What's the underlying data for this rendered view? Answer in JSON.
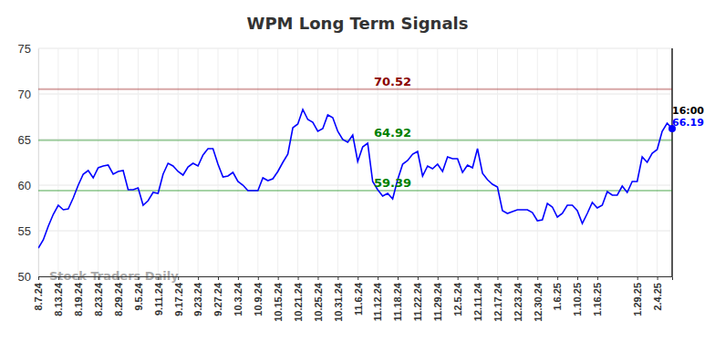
{
  "chart_data": {
    "type": "line",
    "title": "WPM Long Term Signals",
    "categories": [
      "8.7.24",
      null,
      null,
      null,
      "8.13.24",
      null,
      null,
      null,
      "8.19.24",
      null,
      null,
      null,
      "8.23.24",
      null,
      null,
      null,
      "8.29.24",
      null,
      null,
      null,
      "9.5.24",
      null,
      null,
      null,
      "9.11.24",
      null,
      null,
      null,
      "9.17.24",
      null,
      null,
      null,
      "9.23.24",
      null,
      null,
      null,
      "9.27.24",
      null,
      null,
      null,
      "10.3.24",
      null,
      null,
      null,
      "10.9.24",
      null,
      null,
      null,
      "10.15.24",
      null,
      null,
      null,
      "10.21.24",
      null,
      null,
      null,
      "10.25.24",
      null,
      null,
      null,
      "10.31.24",
      null,
      null,
      null,
      "11.6.24",
      null,
      null,
      null,
      "11.12.24",
      null,
      null,
      null,
      "11.18.24",
      null,
      null,
      null,
      "11.22.24",
      null,
      null,
      null,
      "11.29.24",
      null,
      null,
      null,
      "12.5.24",
      null,
      null,
      null,
      "12.11.24",
      null,
      null,
      null,
      "12.17.24",
      null,
      null,
      null,
      "12.23.24",
      null,
      null,
      null,
      "12.30.24",
      null,
      null,
      null,
      "1.6.25",
      null,
      null,
      null,
      "1.10.25",
      null,
      null,
      null,
      "1.16.25",
      null,
      null,
      null,
      null,
      null,
      null,
      null,
      "1.29.25",
      null,
      null,
      null,
      "2.4.25",
      null,
      null,
      null
    ],
    "series": [
      {
        "name": "WPM",
        "color": "#0000ff",
        "marker": "none",
        "line_style": "solid",
        "values": [
          53.1,
          54.0,
          55.5,
          56.8,
          57.8,
          57.3,
          57.4,
          58.6,
          60.0,
          61.2,
          61.6,
          60.8,
          61.9,
          62.1,
          62.2,
          61.2,
          61.5,
          61.6,
          59.5,
          59.5,
          59.7,
          57.8,
          58.3,
          59.2,
          59.1,
          61.2,
          62.4,
          62.1,
          61.5,
          61.1,
          62.0,
          62.4,
          62.1,
          63.3,
          64.0,
          64.0,
          62.3,
          60.9,
          61.0,
          61.4,
          60.4,
          60.0,
          59.4,
          59.4,
          59.4,
          60.8,
          60.5,
          60.7,
          61.5,
          62.5,
          63.4,
          66.3,
          66.7,
          68.3,
          67.2,
          66.9,
          65.9,
          66.2,
          67.7,
          67.4,
          65.9,
          65.0,
          64.7,
          65.5,
          62.6,
          64.2,
          64.6,
          60.4,
          59.5,
          58.8,
          59.1,
          58.5,
          60.6,
          62.3,
          62.7,
          63.4,
          63.7,
          61.0,
          62.1,
          61.8,
          62.3,
          61.5,
          63.1,
          62.9,
          62.9,
          61.4,
          62.2,
          61.9,
          64.0,
          61.3,
          60.6,
          60.1,
          59.8,
          57.2,
          56.9,
          57.1,
          57.3,
          57.3,
          57.3,
          57.0,
          56.1,
          56.2,
          58.0,
          57.6,
          56.5,
          56.9,
          57.8,
          57.8,
          57.2,
          55.8,
          56.9,
          58.1,
          57.5,
          57.8,
          59.3,
          58.9,
          58.9,
          59.9,
          59.2,
          60.4,
          60.4,
          63.1,
          62.5,
          63.5,
          63.9,
          65.9,
          66.8,
          66.19
        ]
      }
    ],
    "ylim": [
      50,
      75
    ],
    "yticks": [
      50,
      55,
      60,
      65,
      70,
      75
    ],
    "grid": true,
    "reference_lines": [
      {
        "value": 70.52,
        "color": "#8b0000"
      },
      {
        "value": 64.92,
        "color": "#008000"
      },
      {
        "value": 59.39,
        "color": "#008000"
      }
    ],
    "time_label": "16:00",
    "watermark": "Stock Traders Daily"
  }
}
